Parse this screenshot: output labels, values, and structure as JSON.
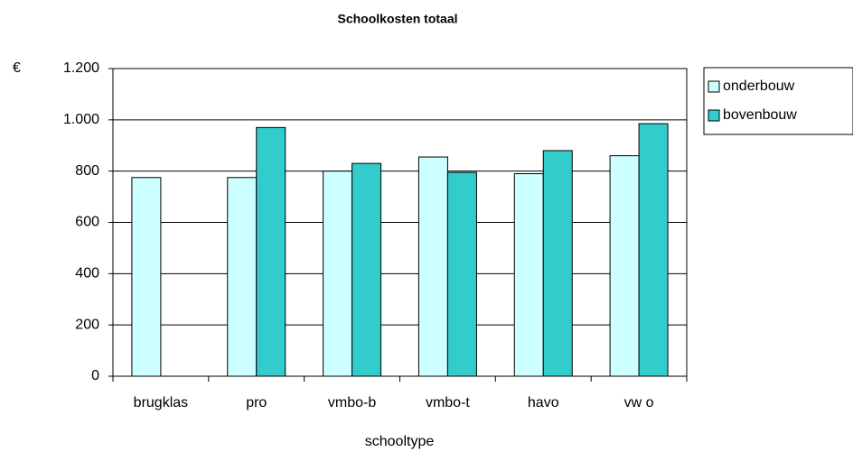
{
  "chart_data": {
    "type": "bar",
    "title": "Schoolkosten totaal",
    "y_label": "€",
    "x_label": "schooltype",
    "categories": [
      "brugklas",
      "pro",
      "vmbo-b",
      "vmbo-t",
      "havo",
      "vw o"
    ],
    "series": [
      {
        "name": "onderbouw",
        "color": "#ccffff",
        "values": [
          775,
          775,
          800,
          855,
          790,
          860
        ]
      },
      {
        "name": "bovenbouw",
        "color": "#33cccc",
        "values": [
          null,
          970,
          830,
          795,
          880,
          985
        ]
      }
    ],
    "ylim": [
      0,
      1200
    ],
    "yticks": [
      0,
      200,
      400,
      600,
      800,
      {
        "value": 1000,
        "label": "1.000"
      },
      {
        "value": 1200,
        "label": "1.200"
      }
    ],
    "grid": true,
    "legend": "right"
  }
}
